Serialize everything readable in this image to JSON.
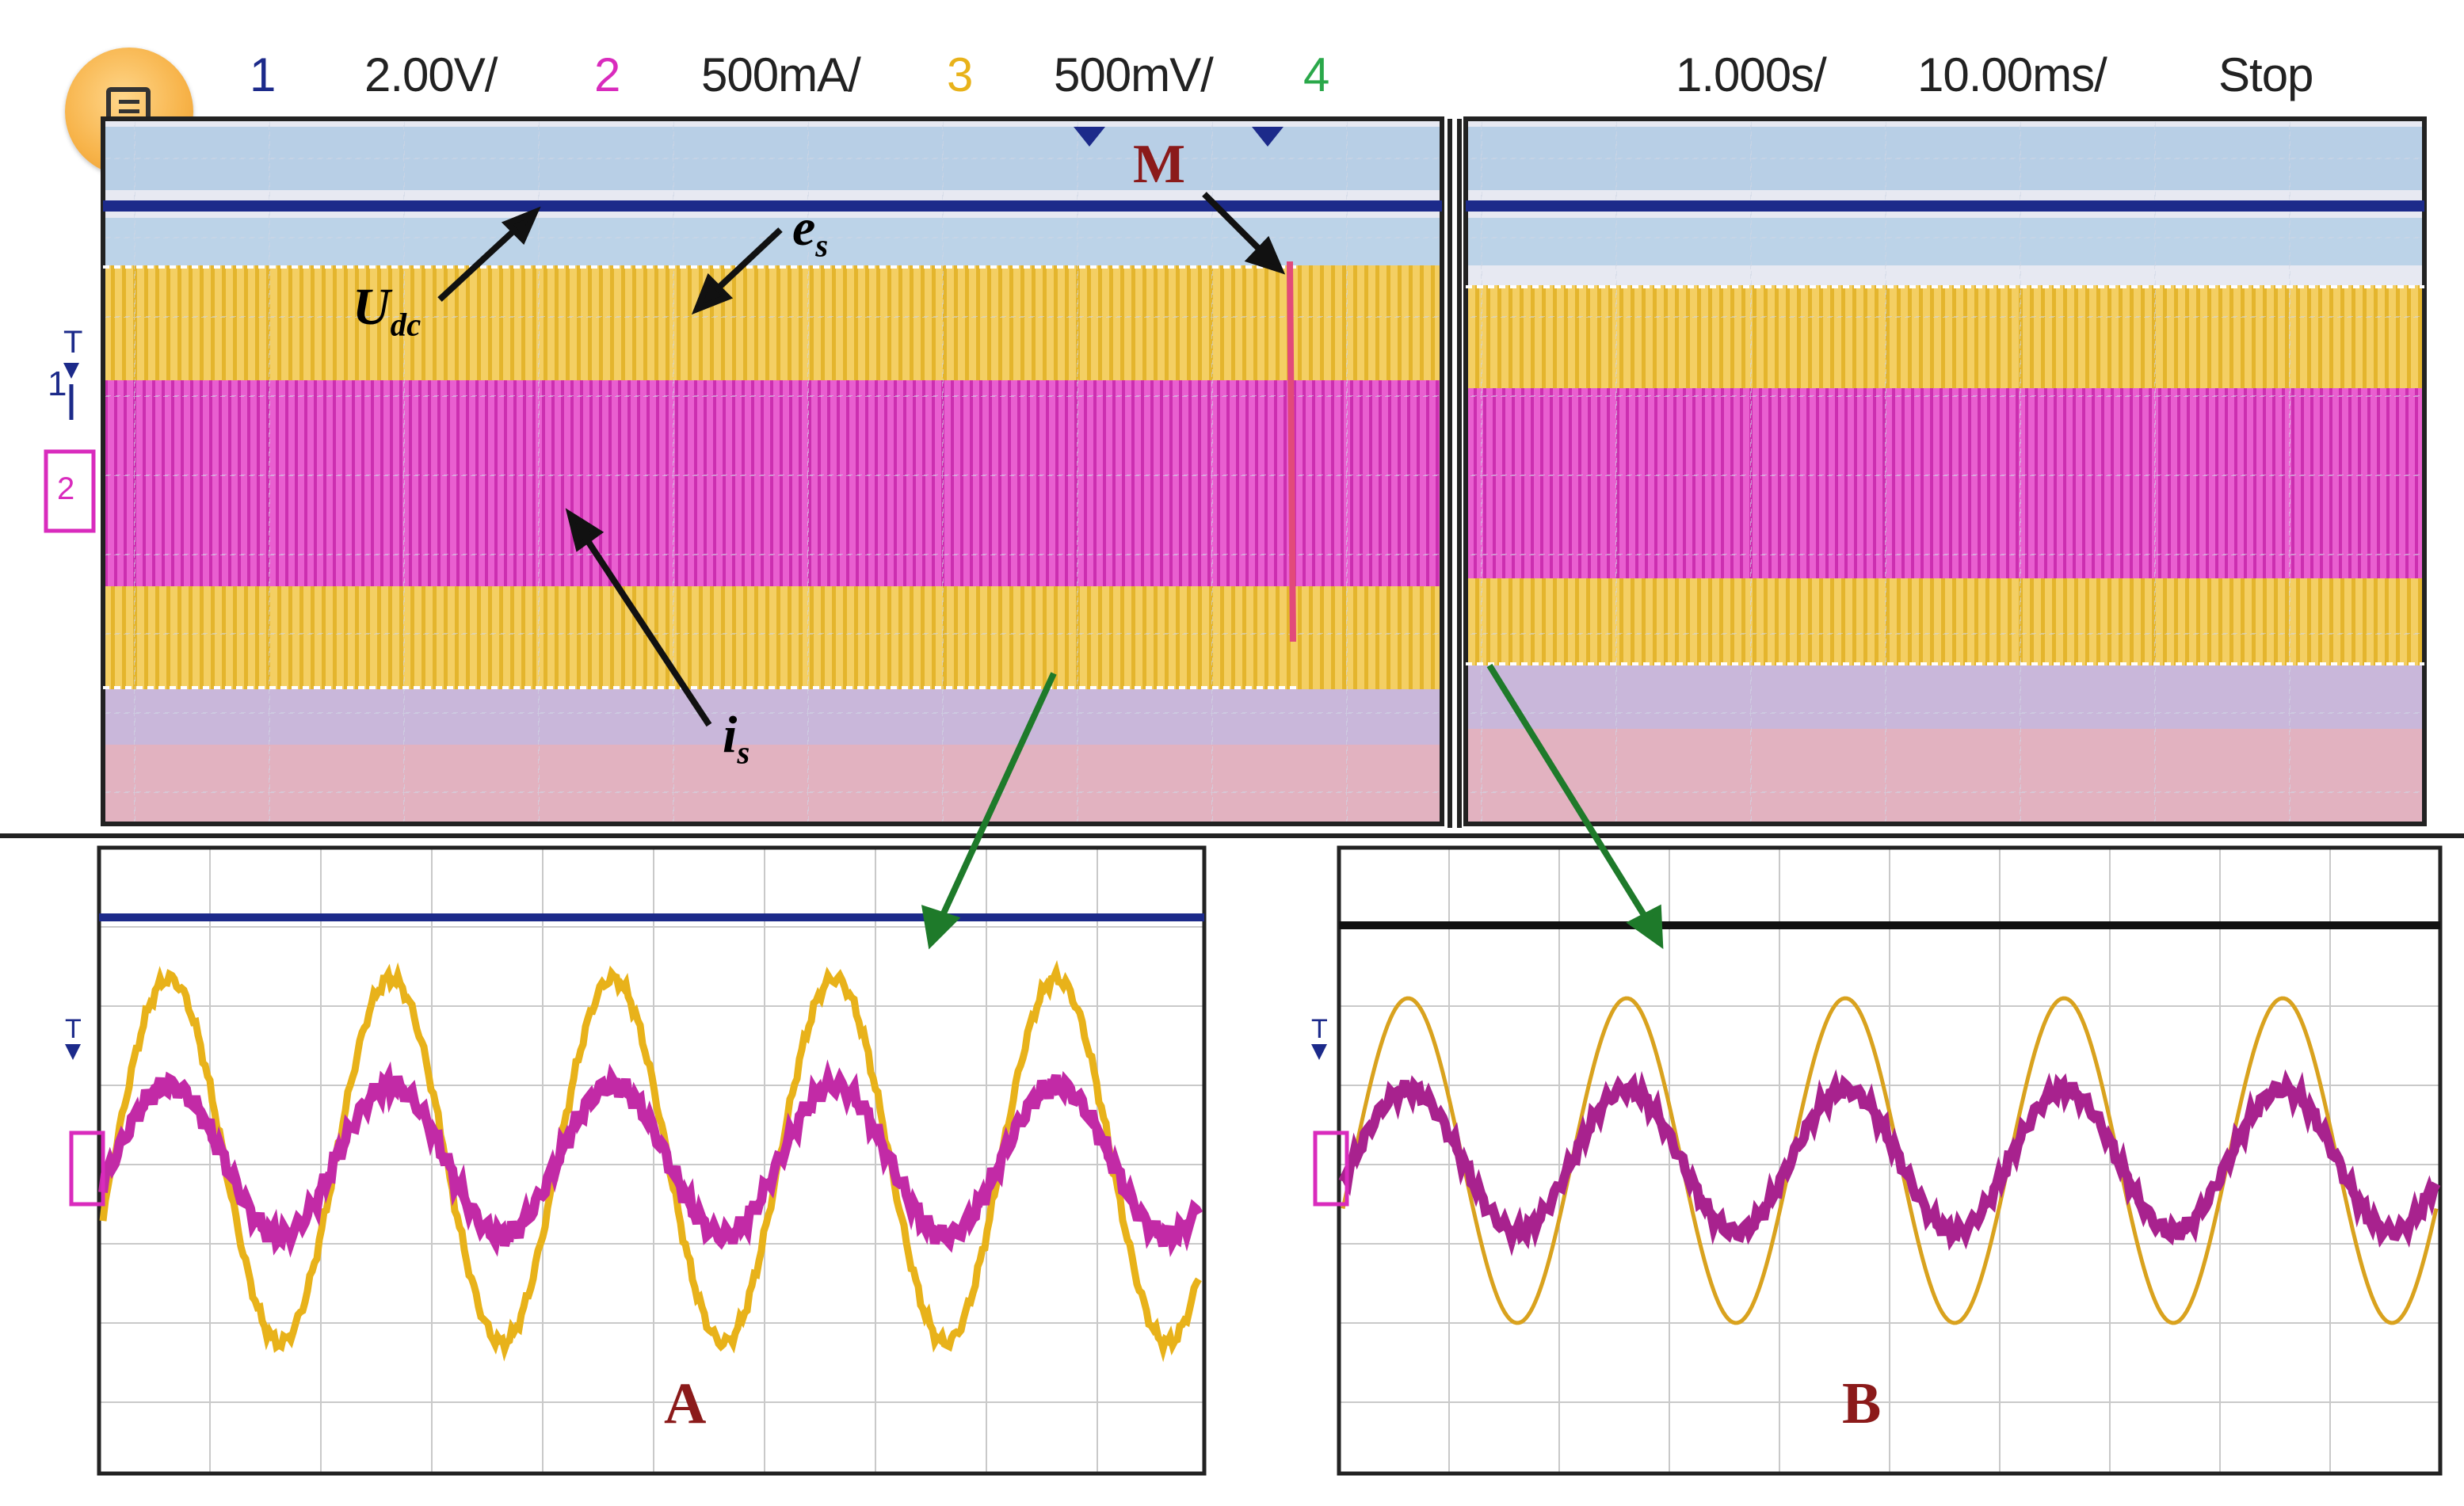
{
  "toolbar": {
    "ch1_num": "1",
    "ch1_scale": "2.00V/",
    "ch2_num": "2",
    "ch2_scale": "500mA/",
    "ch3_num": "3",
    "ch3_scale": "500mV/",
    "ch4_num": "4",
    "timebase": "1.000s/",
    "zoom_timebase": "10.00ms/",
    "run_state": "Stop",
    "menu_icon": "menu-list-icon",
    "colors": {
      "ch1": "#1c2a8a",
      "ch2": "#d92bbd",
      "ch3": "#e8b21a",
      "ch4": "#2aa84a"
    }
  },
  "markers": {
    "trigger_t": "T",
    "ch1_marker": "1",
    "ch2_marker": "2"
  },
  "annotations": {
    "udc": "U",
    "udc_sub": "dc",
    "es": "e",
    "es_sub": "s",
    "is": "i",
    "is_sub": "s",
    "m": "M",
    "zoom_a": "A",
    "zoom_b": "B"
  },
  "colors": {
    "dc_line": "#1c2a8a",
    "es_trace": "#e8b21a",
    "is_trace": "#c22aa6",
    "arrow": "#1e7a2a",
    "label_red": "#8b1a1a"
  }
}
